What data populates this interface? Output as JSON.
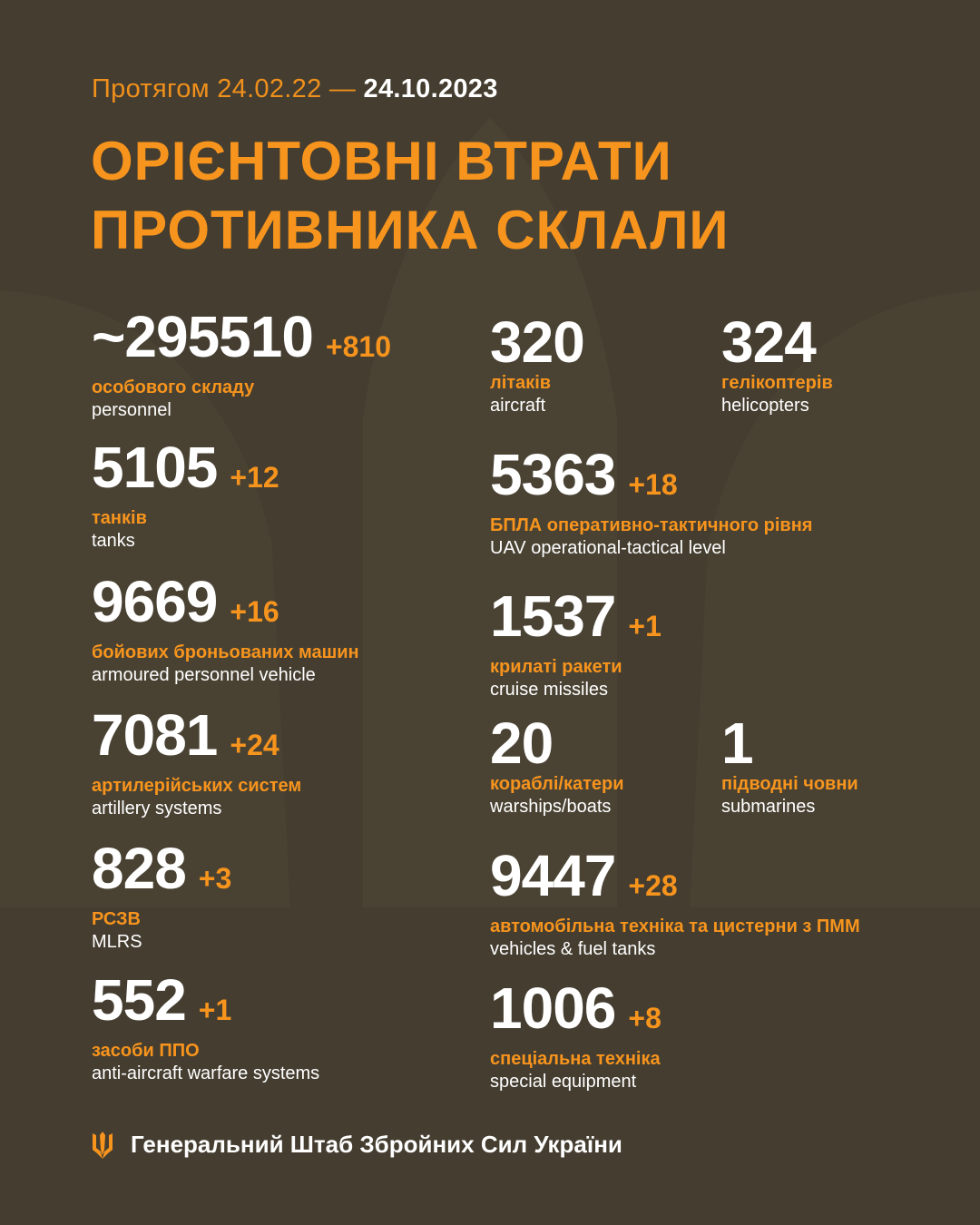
{
  "header": {
    "period_prefix": "Протягом 24.02.22 —",
    "period_end": "24.10.2023",
    "title_line1": "ОРІЄНТОВНІ ВТРАТИ",
    "title_line2": "ПРОТИВНИКА СКЛАЛИ"
  },
  "colors": {
    "background": "#443d30",
    "accent": "#f7941d",
    "text": "#ffffff"
  },
  "items": [
    {
      "value": "~295510",
      "delta": "+810",
      "ua": "особового складу",
      "en": "personnel"
    },
    {
      "value": "5105",
      "delta": "+12",
      "ua": "танків",
      "en": "tanks"
    },
    {
      "value": "9669",
      "delta": "+16",
      "ua": "бойових броньованих машин",
      "en": "armoured personnel vehicle"
    },
    {
      "value": "7081",
      "delta": "+24",
      "ua": "артилерійських систем",
      "en": "artillery systems"
    },
    {
      "value": "828",
      "delta": "+3",
      "ua": "РСЗВ",
      "en": "MLRS"
    },
    {
      "value": "552",
      "delta": "+1",
      "ua": "засоби ППО",
      "en": "anti-aircraft warfare systems"
    },
    {
      "value": "320",
      "delta": "",
      "ua": "літаків",
      "en": "aircraft"
    },
    {
      "value": "324",
      "delta": "",
      "ua": "гелікоптерів",
      "en": "helicopters"
    },
    {
      "value": "5363",
      "delta": "+18",
      "ua": "БПЛА оперативно-тактичного рівня",
      "en": "UAV operational-tactical level"
    },
    {
      "value": "1537",
      "delta": "+1",
      "ua": "крилаті ракети",
      "en": "cruise missiles"
    },
    {
      "value": "20",
      "delta": "",
      "ua": "кораблі/катери",
      "en": "warships/boats"
    },
    {
      "value": "1",
      "delta": "",
      "ua": "підводні човни",
      "en": "submarines"
    },
    {
      "value": "9447",
      "delta": "+28",
      "ua": "автомобільна техніка та цистерни з ПММ",
      "en": "vehicles & fuel tanks"
    },
    {
      "value": "1006",
      "delta": "+8",
      "ua": "спеціальна техніка",
      "en": "special equipment"
    }
  ],
  "footer": {
    "icon": "trident-icon",
    "text": "Генеральний Штаб Збройних Сил України"
  }
}
